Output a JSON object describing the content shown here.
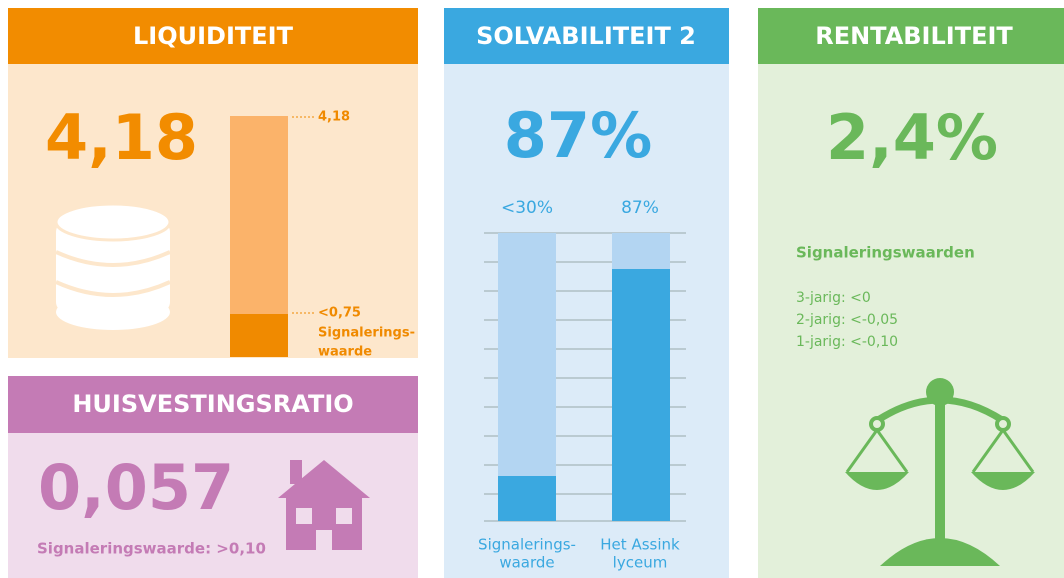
{
  "liquiditeit": {
    "title": "LIQUIDITEIT",
    "value": "4,18",
    "bar_top_label": "4,18",
    "bar_bottom_label": "<0,75",
    "bar_bottom_caption": [
      "Signalerings-",
      "waarde"
    ]
  },
  "huisvestingsratio": {
    "title": "HUISVESTINGSRATIO",
    "value": "0,057",
    "caption": "Signaleringswaarde: >0,10"
  },
  "solvabiliteit": {
    "title": "SOLVABILITEIT 2",
    "value": "87%",
    "bars": [
      {
        "top_label": "<30%",
        "caption": [
          "Signalerings-",
          "waarde"
        ]
      },
      {
        "top_label": "87%",
        "caption": [
          "Het Assink",
          "lyceum"
        ]
      }
    ]
  },
  "rentabiliteit": {
    "title": "RENTABILITEIT",
    "value": "2,4%",
    "subtitle": "Signaleringswaarden",
    "lines": [
      "3-jarig: <0",
      "2-jarig: <-0,05",
      "1-jarig: <-0,10"
    ]
  }
}
